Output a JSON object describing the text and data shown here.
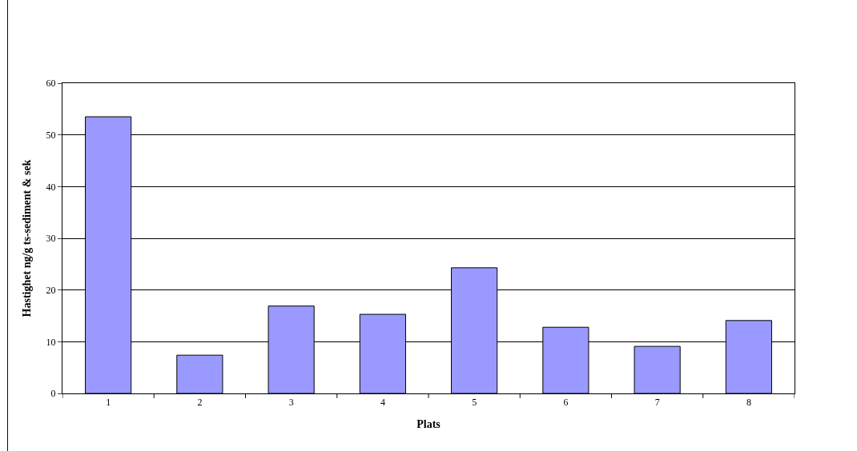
{
  "chart_data": {
    "type": "bar",
    "xlabel": "Plats",
    "ylabel": "Hastighet ng/g ts-sediment & sek",
    "categories": [
      "1",
      "2",
      "3",
      "4",
      "5",
      "6",
      "7",
      "8"
    ],
    "values": [
      53.5,
      7.4,
      16.9,
      15.3,
      24.3,
      12.8,
      9.1,
      14.1
    ],
    "color": "#9999ff",
    "ylim": [
      0,
      60
    ],
    "yticks": [
      0,
      10,
      20,
      30,
      40,
      50,
      60
    ],
    "grid": "y"
  }
}
